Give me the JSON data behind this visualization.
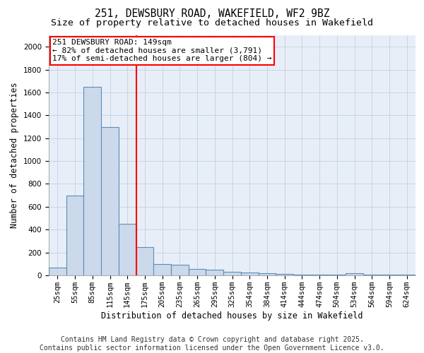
{
  "title": "251, DEWSBURY ROAD, WAKEFIELD, WF2 9BZ",
  "subtitle": "Size of property relative to detached houses in Wakefield",
  "xlabel": "Distribution of detached houses by size in Wakefield",
  "ylabel": "Number of detached properties",
  "categories": [
    "25sqm",
    "55sqm",
    "85sqm",
    "115sqm",
    "145sqm",
    "175sqm",
    "205sqm",
    "235sqm",
    "265sqm",
    "295sqm",
    "325sqm",
    "354sqm",
    "384sqm",
    "414sqm",
    "444sqm",
    "474sqm",
    "504sqm",
    "534sqm",
    "564sqm",
    "594sqm",
    "624sqm"
  ],
  "values": [
    70,
    700,
    1650,
    1300,
    450,
    250,
    100,
    90,
    55,
    50,
    30,
    25,
    20,
    15,
    5,
    5,
    5,
    20,
    5,
    5,
    5
  ],
  "bar_color": "#ccd9ea",
  "bar_edge_color": "#5b8db8",
  "red_line_x": 4.5,
  "annotation_line1": "251 DEWSBURY ROAD: 149sqm",
  "annotation_line2": "← 82% of detached houses are smaller (3,791)",
  "annotation_line3": "17% of semi-detached houses are larger (804) →",
  "annotation_box_color": "white",
  "annotation_box_edge": "red",
  "ylim": [
    0,
    2100
  ],
  "yticks": [
    0,
    200,
    400,
    600,
    800,
    1000,
    1200,
    1400,
    1600,
    1800,
    2000
  ],
  "grid_color": "#c8d5e5",
  "bg_color": "#e8eef8",
  "footer_line1": "Contains HM Land Registry data © Crown copyright and database right 2025.",
  "footer_line2": "Contains public sector information licensed under the Open Government Licence v3.0.",
  "title_fontsize": 10.5,
  "subtitle_fontsize": 9.5,
  "axis_label_fontsize": 8.5,
  "tick_fontsize": 7.5,
  "annotation_fontsize": 8,
  "footer_fontsize": 7
}
